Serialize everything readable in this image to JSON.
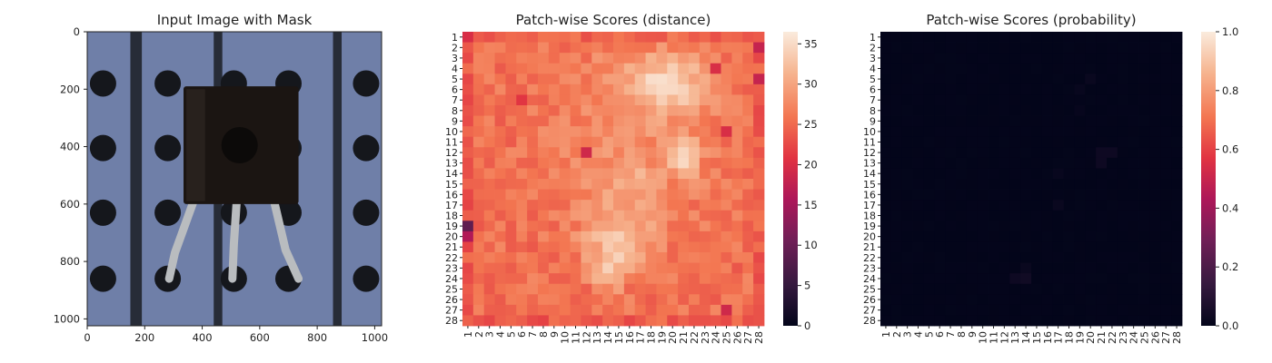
{
  "figure": {
    "panel1": {
      "title": "Input Image with Mask",
      "x_ticks": [
        "0",
        "200",
        "400",
        "600",
        "800",
        "1000"
      ],
      "y_ticks": [
        "0",
        "200",
        "400",
        "600",
        "800",
        "1000"
      ],
      "xlim": [
        0,
        1024
      ],
      "ylim": [
        0,
        1024
      ],
      "background_color": "#6f7fa8",
      "strip_color": "#272c37",
      "hole_color": "#15171c",
      "component_color": "#1b1512",
      "lead_color": "#b9bcbf"
    },
    "panel2": {
      "title": "Patch-wise Scores (distance)",
      "colorbar_ticks": [
        "0",
        "5",
        "10",
        "15",
        "20",
        "25",
        "30",
        "35"
      ],
      "colorbar_range": [
        0,
        36.5
      ],
      "colormap": "rocket",
      "colormap_stops": [
        "#03051a",
        "#35193e",
        "#701f57",
        "#ad1759",
        "#e13342",
        "#f37651",
        "#f6b48f",
        "#faebdd"
      ]
    },
    "panel3": {
      "title": "Patch-wise Scores (probability)",
      "colorbar_ticks": [
        "0.0",
        "0.2",
        "0.4",
        "0.6",
        "0.8",
        "1.0"
      ],
      "colorbar_range": [
        0,
        1
      ],
      "colormap": "rocket"
    },
    "row_labels": [
      "1",
      "2",
      "3",
      "4",
      "5",
      "6",
      "7",
      "8",
      "9",
      "10",
      "11",
      "12",
      "13",
      "14",
      "15",
      "16",
      "17",
      "18",
      "19",
      "20",
      "21",
      "22",
      "23",
      "24",
      "25",
      "26",
      "27",
      "28"
    ],
    "col_labels": [
      "1",
      "2",
      "3",
      "4",
      "5",
      "6",
      "7",
      "8",
      "9",
      "10",
      "11",
      "12",
      "13",
      "14",
      "15",
      "16",
      "17",
      "18",
      "19",
      "20",
      "21",
      "22",
      "23",
      "24",
      "25",
      "26",
      "27",
      "28"
    ]
  },
  "chart_data": [
    {
      "type": "image",
      "title": "Input Image with Mask",
      "xlim": [
        0,
        1024
      ],
      "ylim": [
        1024,
        0
      ],
      "x_ticks": [
        0,
        200,
        400,
        600,
        800,
        1000
      ],
      "y_ticks": [
        0,
        200,
        400,
        600,
        800,
        1000
      ]
    },
    {
      "type": "heatmap",
      "title": "Patch-wise Scores (distance)",
      "rows": 28,
      "cols": 28,
      "value_range": [
        0,
        36.5
      ],
      "base_value": 25.5,
      "hot_regions": [
        {
          "row": 5.5,
          "col": 19.5,
          "rx": 3.5,
          "ry": 2.5,
          "amp": 8.5
        },
        {
          "row": 12.5,
          "col": 21.0,
          "rx": 1.5,
          "ry": 1.8,
          "amp": 6.5
        },
        {
          "row": 20.5,
          "col": 15.0,
          "rx": 3.0,
          "ry": 3.0,
          "amp": 7.0
        },
        {
          "row": 23.5,
          "col": 14.0,
          "rx": 1.3,
          "ry": 1.6,
          "amp": 5.5
        },
        {
          "row": 15.0,
          "col": 16.0,
          "rx": 2.5,
          "ry": 2.5,
          "amp": 3.0
        },
        {
          "row": 10.0,
          "col": 16.0,
          "rx": 8.0,
          "ry": 10.0,
          "amp": 2.5
        }
      ],
      "cold_cells": [
        {
          "row": 19,
          "col": 1,
          "value": 9
        },
        {
          "row": 20,
          "col": 1,
          "value": 16
        },
        {
          "row": 2,
          "col": 28,
          "value": 18
        },
        {
          "row": 5,
          "col": 28,
          "value": 18
        },
        {
          "row": 1,
          "col": 1,
          "value": 20
        },
        {
          "row": 12,
          "col": 12,
          "value": 19
        },
        {
          "row": 27,
          "col": 25,
          "value": 19
        },
        {
          "row": 10,
          "col": 25,
          "value": 20
        },
        {
          "row": 4,
          "col": 24,
          "value": 20
        },
        {
          "row": 7,
          "col": 6,
          "value": 21
        }
      ]
    },
    {
      "type": "heatmap",
      "title": "Patch-wise Scores (probability)",
      "rows": 28,
      "cols": 28,
      "value_range": [
        0,
        1
      ],
      "base_value": 0.0,
      "nonzero_cells": [
        {
          "row": 12,
          "col": 21,
          "value": 0.03
        },
        {
          "row": 12,
          "col": 22,
          "value": 0.03
        },
        {
          "row": 13,
          "col": 21,
          "value": 0.03
        },
        {
          "row": 24,
          "col": 14,
          "value": 0.04
        },
        {
          "row": 24,
          "col": 13,
          "value": 0.03
        },
        {
          "row": 23,
          "col": 14,
          "value": 0.02
        },
        {
          "row": 5,
          "col": 20,
          "value": 0.02
        },
        {
          "row": 6,
          "col": 19,
          "value": 0.015
        },
        {
          "row": 14,
          "col": 17,
          "value": 0.015
        },
        {
          "row": 17,
          "col": 17,
          "value": 0.02
        },
        {
          "row": 8,
          "col": 19,
          "value": 0.01
        }
      ]
    }
  ]
}
